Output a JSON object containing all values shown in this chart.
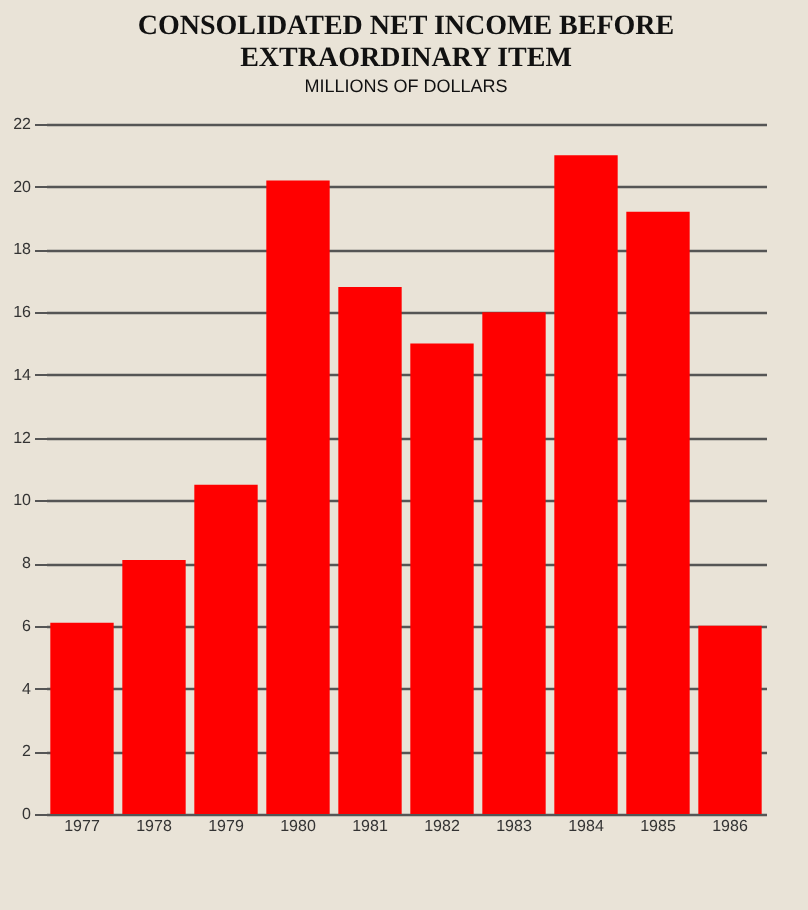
{
  "chart_data": {
    "type": "bar",
    "title": "CONSOLIDATED NET INCOME BEFORE EXTRAORDINARY ITEM",
    "subtitle": "MILLIONS OF DOLLARS",
    "categories": [
      "1977",
      "1978",
      "1979",
      "1980",
      "1981",
      "1982",
      "1983",
      "1984",
      "1985",
      "1986"
    ],
    "values": [
      6.1,
      8.1,
      10.5,
      20.2,
      16.8,
      15.0,
      16.0,
      21.0,
      19.2,
      6.0
    ],
    "color": "#ff0000",
    "ylim": [
      0,
      22
    ],
    "yticks": [
      0,
      2,
      4,
      6,
      8,
      10,
      12,
      14,
      16,
      18,
      20,
      22
    ],
    "grid": "y"
  }
}
